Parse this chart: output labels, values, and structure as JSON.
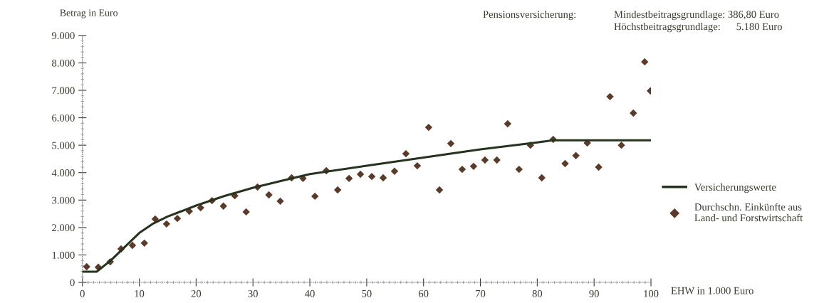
{
  "chart_data": {
    "type": "scatter",
    "xlabel": "EHW in 1.000 Euro",
    "ylabel": "Betrag in Euro",
    "annotations": [
      "Pensionsversicherung:",
      "Mindestbeitragsgrundlage: 386,80 Euro",
      "Höchstbeitragsgrundlage:      5.180 Euro"
    ],
    "xlim": [
      0,
      100
    ],
    "xticks": [
      0,
      10,
      20,
      30,
      40,
      50,
      60,
      70,
      80,
      90,
      100
    ],
    "ylim": [
      0,
      9000
    ],
    "yticks": [
      {
        "value": 0,
        "label": "0"
      },
      {
        "value": 1000,
        "label": "1.000"
      },
      {
        "value": 2000,
        "label": "2.000"
      },
      {
        "value": 3000,
        "label": "3.000"
      },
      {
        "value": 4000,
        "label": "4.000"
      },
      {
        "value": 5000,
        "label": "5.000"
      },
      {
        "value": 6000,
        "label": "6.000"
      },
      {
        "value": 7000,
        "label": "7.000"
      },
      {
        "value": 8000,
        "label": "8.000"
      },
      {
        "value": 9000,
        "label": "9.000"
      }
    ],
    "grid": false,
    "legend": "right",
    "series": [
      {
        "name": "Versicherungswerte",
        "type": "line",
        "color": "#26331f",
        "marker": "none",
        "line_style": "solid",
        "x": [
          0,
          2.5,
          5,
          7.5,
          10,
          12.5,
          15,
          20,
          25,
          30,
          35,
          40,
          50,
          60,
          70,
          80,
          82.7,
          100
        ],
        "values": [
          390,
          390,
          800,
          1300,
          1800,
          2150,
          2400,
          2800,
          3150,
          3450,
          3700,
          3950,
          4250,
          4550,
          4850,
          5100,
          5180,
          5180
        ]
      },
      {
        "name": "Durchschn. Einkünfte aus\nLand- und Forstwirtschaft",
        "color": "#5a3a28",
        "marker": "diamond",
        "x": [
          0.75,
          2.8,
          4.9,
          6.8,
          8.8,
          10.9,
          12.8,
          14.8,
          16.7,
          18.8,
          20.8,
          22.8,
          24.8,
          26.8,
          28.8,
          30.8,
          32.8,
          34.8,
          36.8,
          38.8,
          40.9,
          42.9,
          44.9,
          46.9,
          48.9,
          50.9,
          52.9,
          54.9,
          56.9,
          58.9,
          60.9,
          62.8,
          64.8,
          66.8,
          68.8,
          70.8,
          72.9,
          74.8,
          76.8,
          78.8,
          80.8,
          82.8,
          84.9,
          86.8,
          88.8,
          90.8,
          92.8,
          94.8,
          96.9,
          98.9,
          99.9
        ],
        "values": [
          570,
          550,
          750,
          1220,
          1350,
          1430,
          2310,
          2130,
          2330,
          2590,
          2720,
          2980,
          2780,
          3160,
          2570,
          3475,
          3190,
          2960,
          3810,
          3790,
          3140,
          4070,
          3370,
          3790,
          3940,
          3860,
          3810,
          4050,
          4690,
          4250,
          5650,
          3370,
          5060,
          4120,
          4230,
          4460,
          4460,
          5780,
          4120,
          5000,
          3810,
          5210,
          4330,
          4620,
          5080,
          4200,
          6770,
          5000,
          6170,
          8040,
          6980
        ]
      }
    ]
  }
}
